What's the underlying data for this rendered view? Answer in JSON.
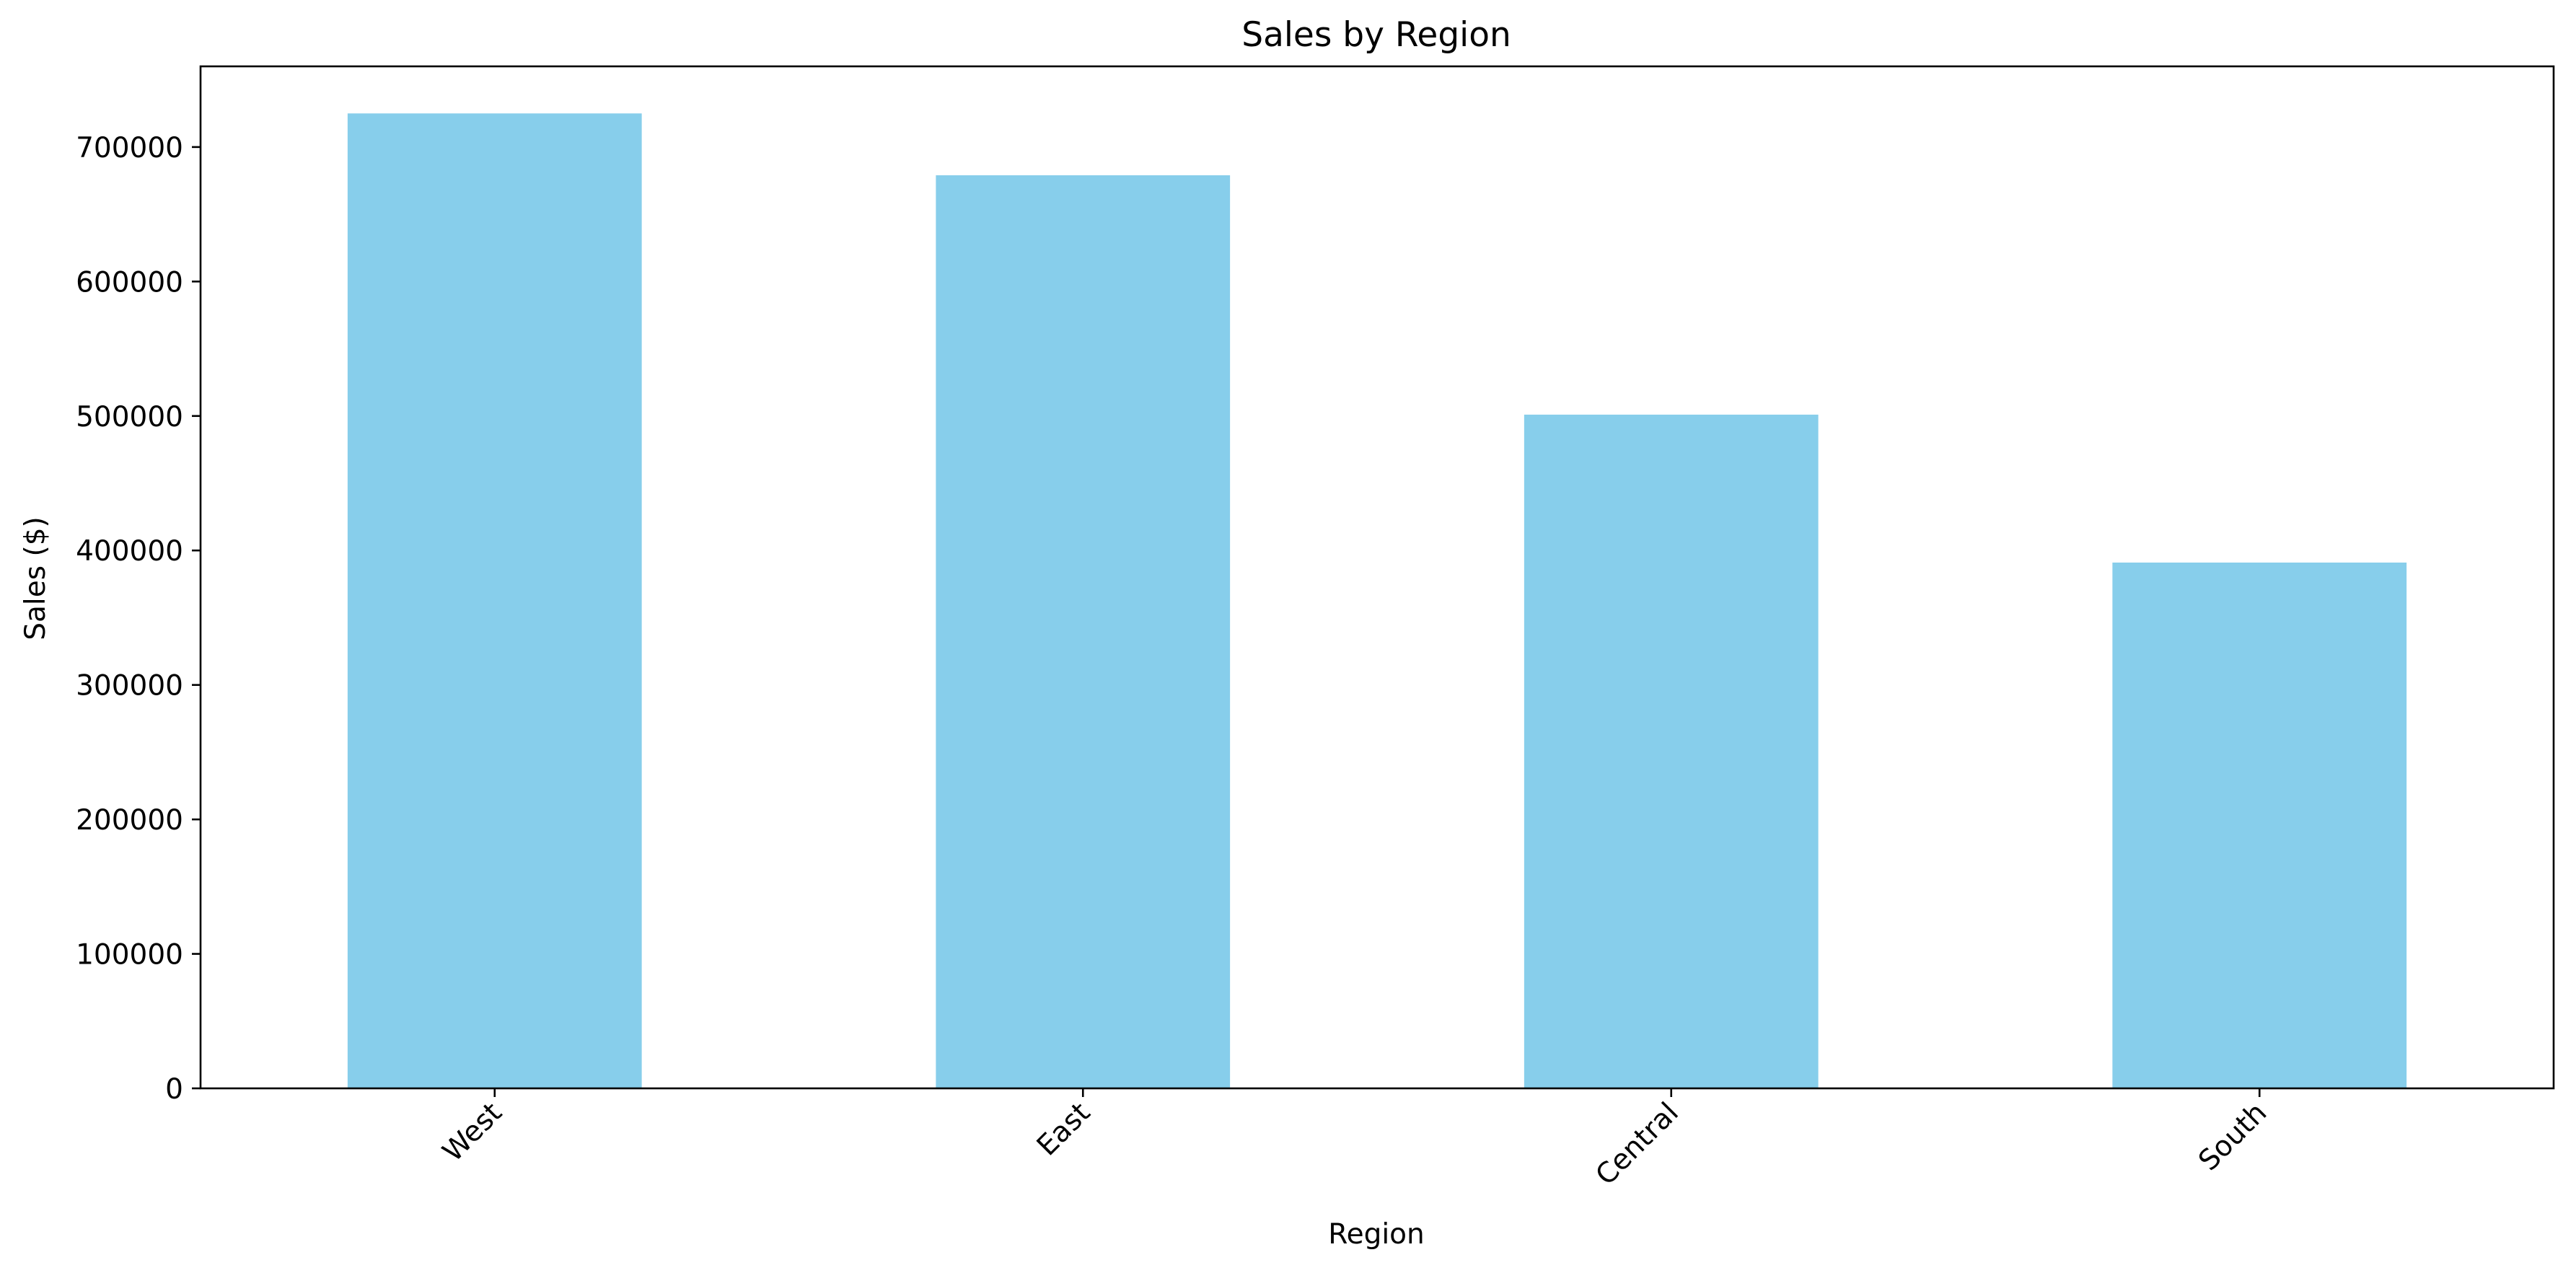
{
  "chart_data": {
    "type": "bar",
    "title": "Sales by Region",
    "xlabel": "Region",
    "ylabel": "Sales ($)",
    "categories": [
      "West",
      "East",
      "Central",
      "South"
    ],
    "values": [
      725000,
      679000,
      501000,
      391000
    ],
    "ylim": [
      0,
      760000
    ],
    "yticks": [
      0,
      100000,
      200000,
      300000,
      400000,
      500000,
      600000,
      700000
    ],
    "ytick_labels": [
      "0",
      "100000",
      "200000",
      "300000",
      "400000",
      "500000",
      "600000",
      "700000"
    ],
    "bar_color": "#87ceeb",
    "axis_color": "#000000",
    "text_color": "#000000",
    "background_color": "#ffffff",
    "grid": false,
    "legend": false
  }
}
